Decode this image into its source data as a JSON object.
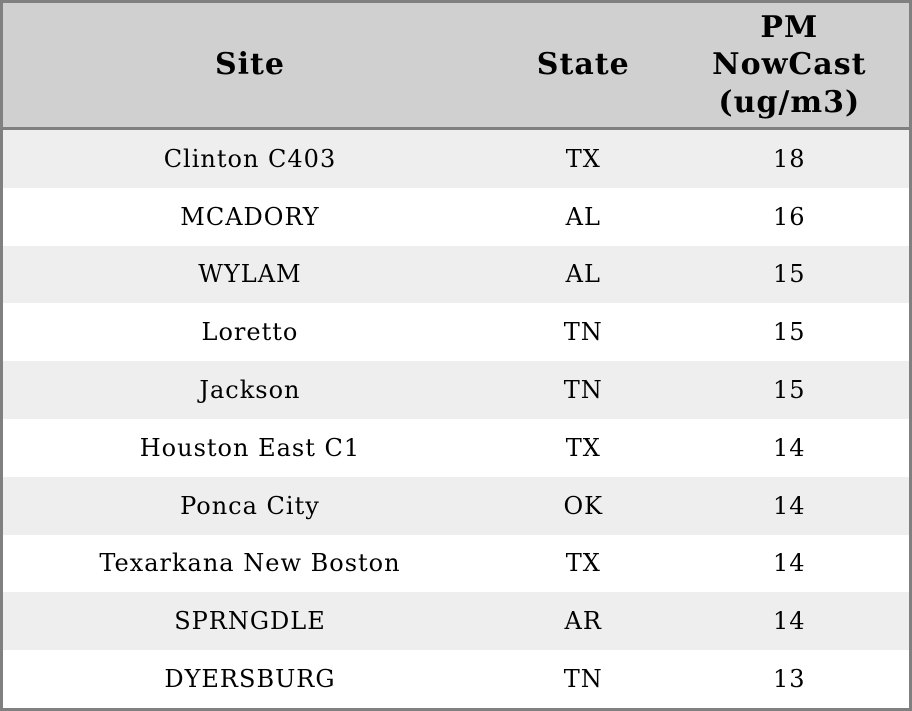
{
  "chart_data": {
    "type": "table",
    "columns": [
      "Site",
      "State",
      "PM\nNowCast\n(ug/m3)"
    ],
    "column_full_labels": [
      "Site",
      "State",
      "PM NowCast (ug/m3)"
    ],
    "rows": [
      [
        "Clinton C403",
        "TX",
        18
      ],
      [
        "MCADORY",
        "AL",
        16
      ],
      [
        "WYLAM",
        "AL",
        15
      ],
      [
        "Loretto",
        "TN",
        15
      ],
      [
        "Jackson",
        "TN",
        15
      ],
      [
        "Houston East C1",
        "TX",
        14
      ],
      [
        "Ponca City",
        "OK",
        14
      ],
      [
        "Texarkana New Boston",
        "TX",
        14
      ],
      [
        "SPRNGDLE",
        "AR",
        14
      ],
      [
        "DYERSBURG",
        "TN",
        13
      ]
    ],
    "layout_hints": {
      "striped_rows": true,
      "first_body_row_shaded": true,
      "all_columns_center_aligned": true
    }
  },
  "colors": {
    "header_bg": "#d0d0d0",
    "border": "#808080",
    "row_odd_bg": "#eeeeee",
    "row_even_bg": "#ffffff",
    "text": "#000000"
  }
}
